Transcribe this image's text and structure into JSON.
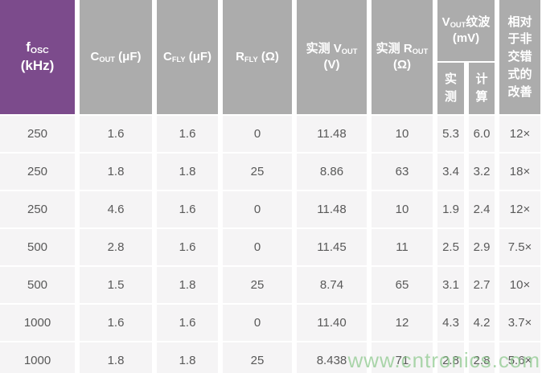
{
  "chart_data": {
    "type": "table",
    "title": "",
    "columns": [
      "fOSC (kHz)",
      "COUT (μF)",
      "CFLY (μF)",
      "RFLY (Ω)",
      "实测 VOUT (V)",
      "实测 ROUT (Ω)",
      "VOUT纹波 (mV) 实测",
      "VOUT纹波 (mV) 计算",
      "相对于非交错式的改善"
    ],
    "column_ids": [
      "fosc",
      "cout",
      "cfly",
      "rfly",
      "vout-measured",
      "rout-measured",
      "ripple-measured",
      "ripple-calculated",
      "improvement"
    ],
    "rows": [
      [
        "250",
        "1.6",
        "1.6",
        "0",
        "11.48",
        "10",
        "5.3",
        "6.0",
        "12×"
      ],
      [
        "250",
        "1.8",
        "1.8",
        "25",
        "8.86",
        "63",
        "3.4",
        "3.2",
        "18×"
      ],
      [
        "250",
        "4.6",
        "1.6",
        "0",
        "11.48",
        "10",
        "1.9",
        "2.4",
        "12×"
      ],
      [
        "500",
        "2.8",
        "1.6",
        "0",
        "11.45",
        "11",
        "2.5",
        "2.9",
        "7.5×"
      ],
      [
        "500",
        "1.5",
        "1.8",
        "25",
        "8.74",
        "65",
        "3.1",
        "2.7",
        "10×"
      ],
      [
        "1000",
        "1.6",
        "1.6",
        "0",
        "11.40",
        "12",
        "4.3",
        "4.2",
        "3.7×"
      ],
      [
        "1000",
        "1.8",
        "1.8",
        "25",
        "8.438",
        "71",
        "2.8",
        "2.8",
        "5.6×"
      ]
    ]
  },
  "header": {
    "fosc": {
      "pre": "f",
      "sub": "OSC",
      "line2": "(kHz)"
    },
    "cout": {
      "pre": "C",
      "sub": "OUT",
      "post": " (μF)"
    },
    "cfly": {
      "pre": "C",
      "sub": "FLY",
      "post": " (μF)"
    },
    "rfly": {
      "pre": "R",
      "sub": "FLY",
      "post": " (Ω)"
    },
    "vout": {
      "pre": "实测 V",
      "sub": "OUT",
      "line2": "(V)"
    },
    "rout": {
      "pre": "实测 R",
      "sub": "OUT",
      "line2": "(Ω)"
    },
    "ripple": {
      "pre": "V",
      "sub": "OUT",
      "post": "纹波 (mV)"
    },
    "ripple_measured": "实\n测",
    "ripple_calculated": "计\n算",
    "improvement": "相对\n于非\n交错\n式的\n改善"
  },
  "watermark": {
    "text": "www.cntronics.com"
  },
  "colors": {
    "accent_purple": "#7c4b8c",
    "header_gray": "#acacac",
    "row_background": "#f5f4f5",
    "cell_text": "#595959",
    "watermark_green": "#8cc98c"
  }
}
